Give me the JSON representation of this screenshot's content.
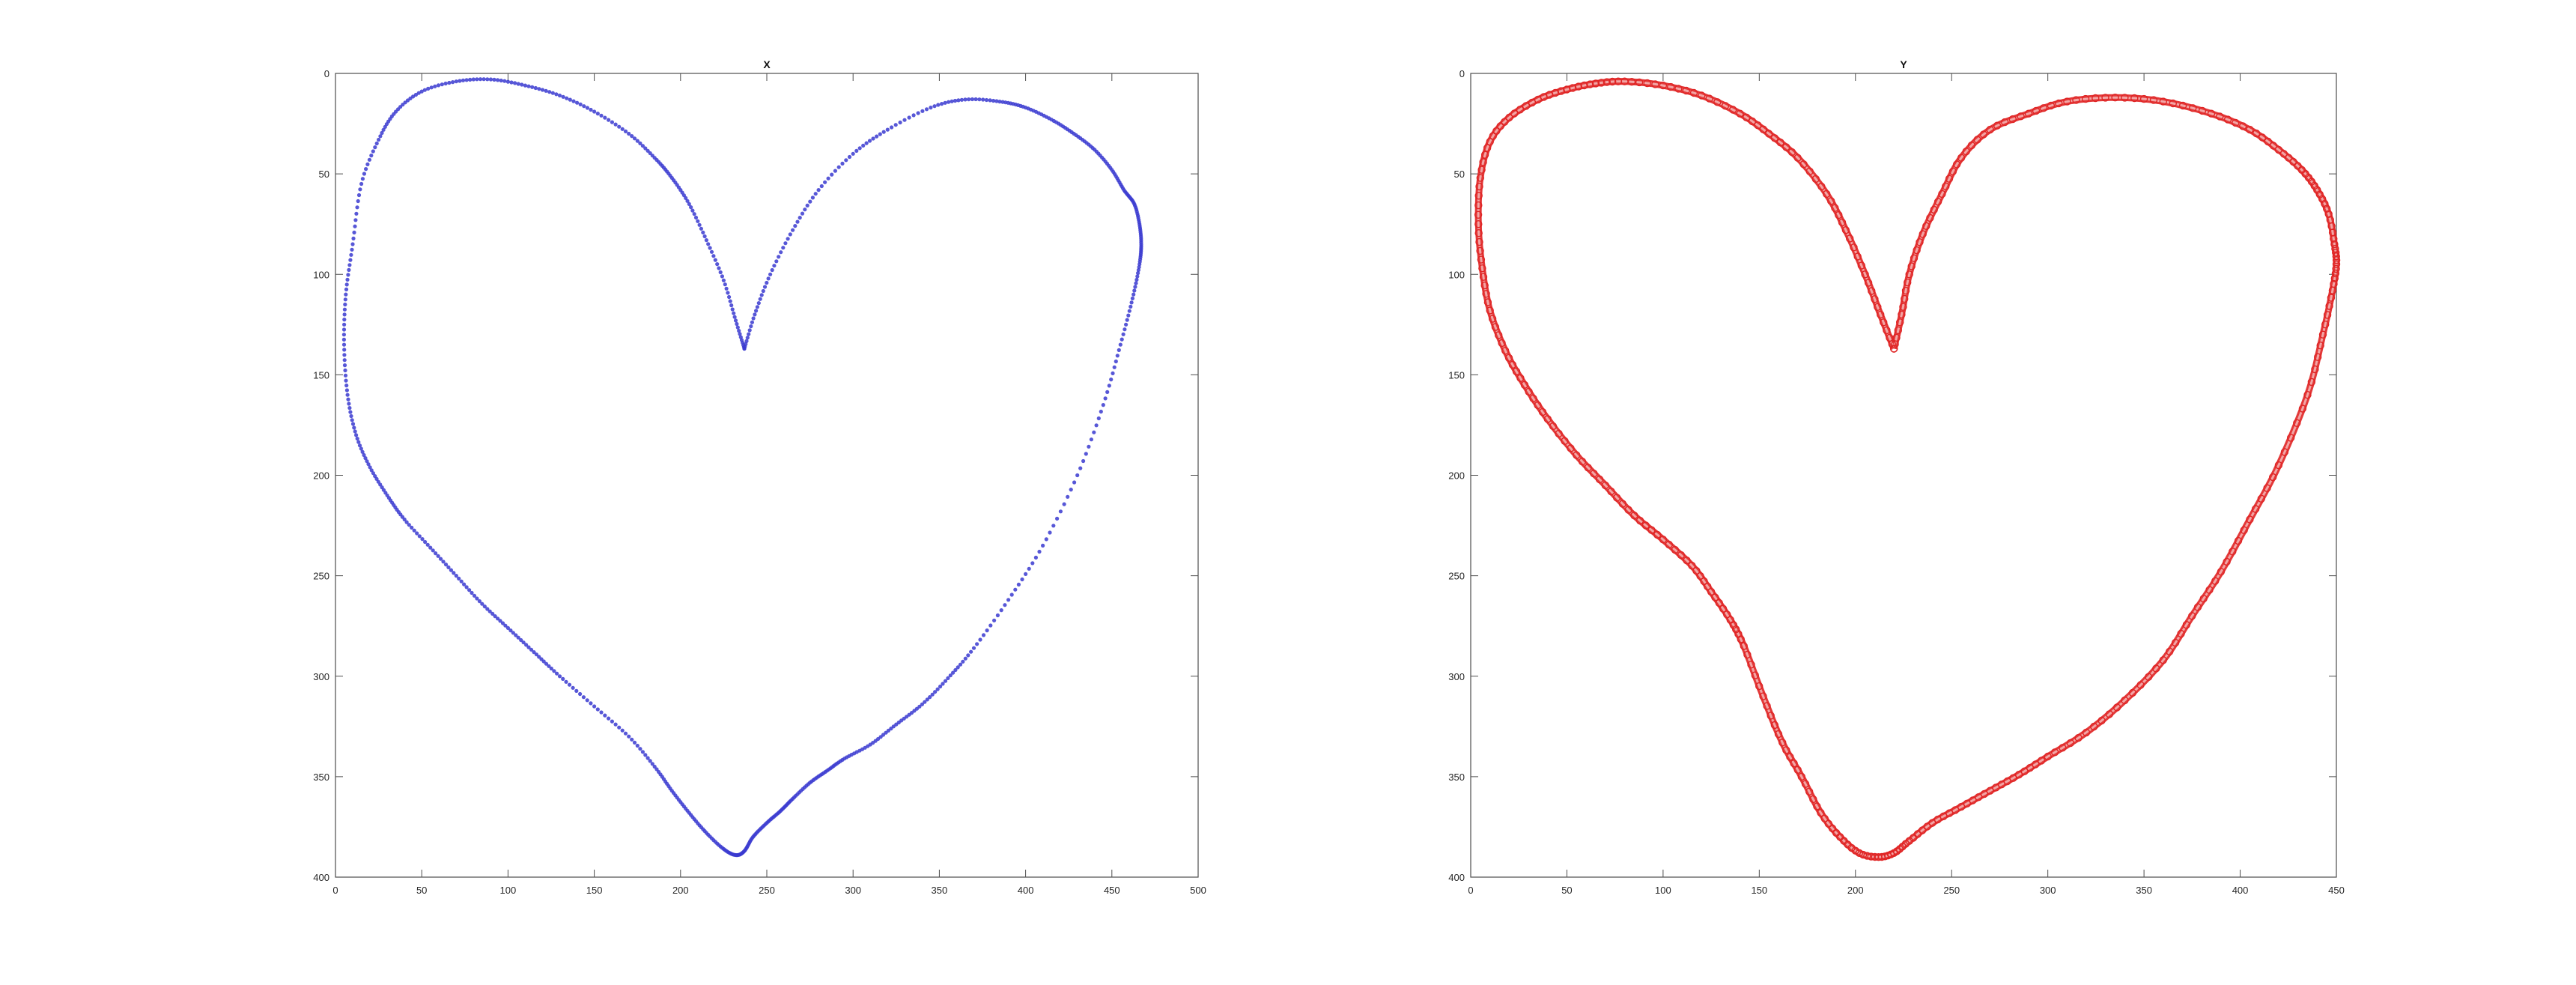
{
  "figure": {
    "background": "#ffffff"
  },
  "chart_data": [
    {
      "type": "scatter",
      "title": "X",
      "xlim": [
        0,
        500
      ],
      "ylim": [
        0,
        400
      ],
      "y_reversed": true,
      "grid": false,
      "xticks": [
        0,
        50,
        100,
        150,
        200,
        250,
        300,
        350,
        400,
        450,
        500
      ],
      "yticks": [
        0,
        50,
        100,
        150,
        200,
        250,
        300,
        350,
        400
      ],
      "marker": "point-dense",
      "color": "#3a3ad0",
      "series": [
        {
          "x": [
            237,
            232,
            225,
            215,
            205,
            195,
            185,
            170,
            150,
            130,
            110,
            90,
            70,
            50,
            35,
            25,
            15,
            10,
            6,
            5,
            7,
            12,
            20,
            30,
            40,
            55,
            70,
            85,
            100,
            115,
            130,
            150,
            170,
            185,
            195,
            205,
            215,
            225,
            232,
            237,
            242,
            250,
            258,
            265,
            275,
            285,
            295,
            310,
            325,
            340,
            355,
            370,
            390,
            410,
            430,
            445,
            455,
            462,
            466,
            467,
            466,
            463,
            457,
            450,
            440,
            428,
            415,
            400,
            385,
            365,
            345,
            320,
            300,
            280,
            265,
            252,
            243,
            237
          ],
          "y": [
            137,
            123,
            103,
            83,
            65,
            52,
            42,
            30,
            19,
            11,
            6,
            3,
            4,
            9,
            19,
            33,
            55,
            85,
            110,
            135,
            160,
            180,
            196,
            210,
            222,
            236,
            250,
            264,
            276,
            288,
            300,
            315,
            330,
            345,
            357,
            368,
            378,
            386,
            389,
            387,
            380,
            373,
            367,
            361,
            353,
            347,
            341,
            334,
            324,
            314,
            301,
            286,
            262,
            235,
            200,
            165,
            135,
            112,
            95,
            85,
            75,
            65,
            58,
            48,
            38,
            30,
            23,
            17,
            14,
            13,
            17,
            28,
            40,
            58,
            78,
            100,
            120,
            137
          ]
        }
      ]
    },
    {
      "type": "line",
      "title": "Y",
      "xlim": [
        0,
        450
      ],
      "ylim": [
        0,
        400
      ],
      "y_reversed": true,
      "grid": false,
      "xticks": [
        0,
        50,
        100,
        150,
        200,
        250,
        300,
        350,
        400,
        450
      ],
      "yticks": [
        0,
        50,
        100,
        150,
        200,
        250,
        300,
        350,
        400
      ],
      "marker": "circle-dense",
      "color": "#e02424",
      "series": [
        {
          "x": [
            220,
            213,
            205,
            195,
            185,
            170,
            155,
            140,
            120,
            100,
            80,
            65,
            50,
            35,
            20,
            10,
            5,
            4,
            6,
            10,
            18,
            28,
            40,
            55,
            70,
            85,
            100,
            115,
            125,
            135,
            142,
            152,
            162,
            172,
            182,
            192,
            202,
            212,
            220,
            228,
            240,
            255,
            270,
            285,
            300,
            320,
            340,
            360,
            375,
            390,
            405,
            420,
            435,
            443,
            448,
            450,
            449,
            446,
            440,
            432,
            420,
            405,
            385,
            360,
            335,
            310,
            290,
            270,
            255,
            245,
            235,
            228,
            224,
            220
          ],
          "y": [
            137,
            120,
            100,
            78,
            60,
            42,
            30,
            20,
            11,
            6,
            4,
            5,
            8,
            13,
            22,
            34,
            52,
            75,
            97,
            118,
            138,
            155,
            172,
            190,
            205,
            220,
            232,
            245,
            258,
            272,
            285,
            310,
            333,
            350,
            368,
            380,
            388,
            390,
            388,
            382,
            373,
            365,
            357,
            349,
            340,
            328,
            312,
            292,
            270,
            248,
            222,
            195,
            160,
            130,
            108,
            95,
            85,
            70,
            58,
            48,
            38,
            28,
            20,
            14,
            12,
            14,
            20,
            28,
            42,
            60,
            80,
            100,
            120,
            137
          ]
        }
      ]
    }
  ]
}
